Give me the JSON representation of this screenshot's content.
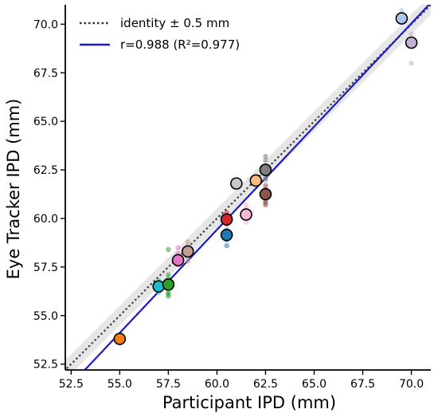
{
  "chart_data": {
    "type": "scatter",
    "title": "",
    "xlabel": "Participant IPD (mm)",
    "ylabel": "Eye Tracker IPD (mm)",
    "xlim": [
      52.2,
      71.0
    ],
    "ylim": [
      52.2,
      71.0
    ],
    "xticks": [
      "52.5",
      "55.0",
      "57.5",
      "60.0",
      "62.5",
      "65.0",
      "67.5",
      "70.0"
    ],
    "yticks": [
      "52.5",
      "55.0",
      "57.5",
      "60.0",
      "62.5",
      "65.0",
      "67.5",
      "70.0"
    ],
    "grid": false,
    "legend_position": "top-left",
    "legend": {
      "identity_label": "identity ± 0.5 mm",
      "fit_label": "r=0.988 (R²=0.977)"
    },
    "identity_band_halfwidth": 0.5,
    "fit_line": {
      "slope": 1.062,
      "intercept": -4.3,
      "color": "#1a1acc"
    },
    "participants": [
      {
        "x": 55.0,
        "y": 53.8,
        "color": "#ff7f0e",
        "samples": [
          53.6,
          53.9,
          54.0,
          53.7
        ]
      },
      {
        "x": 57.0,
        "y": 56.5,
        "color": "#17becf",
        "samples": [
          56.2,
          56.4,
          56.7,
          56.8,
          56.3
        ]
      },
      {
        "x": 57.5,
        "y": 56.6,
        "color": "#2ca02c",
        "samples": [
          56.0,
          56.2,
          56.5,
          56.9,
          57.1,
          58.4,
          56.1
        ]
      },
      {
        "x": 58.0,
        "y": 57.85,
        "color": "#e377c2",
        "samples": [
          58.5,
          57.7,
          58.2,
          57.6
        ]
      },
      {
        "x": 58.5,
        "y": 58.3,
        "color": "#c49c94",
        "samples": [
          57.8,
          58.6,
          58.8,
          58.0,
          58.1
        ]
      },
      {
        "x": 60.5,
        "y": 59.95,
        "color": "#d62728",
        "samples": [
          59.7,
          60.1,
          60.3,
          59.8
        ]
      },
      {
        "x": 60.5,
        "y": 59.15,
        "color": "#1f77b4",
        "samples": [
          58.6,
          59.0,
          59.4,
          58.9
        ]
      },
      {
        "x": 61.0,
        "y": 61.8,
        "color": "#c7c7c7",
        "samples": [
          61.6,
          61.9,
          62.0
        ]
      },
      {
        "x": 61.5,
        "y": 60.2,
        "color": "#f7b6d2",
        "samples": [
          59.8,
          60.5,
          60.7,
          60.0
        ]
      },
      {
        "x": 62.0,
        "y": 61.95,
        "color": "#ffbb78",
        "samples": [
          61.8,
          62.1,
          62.2
        ]
      },
      {
        "x": 62.5,
        "y": 62.5,
        "color": "#7f7f7f",
        "samples": [
          62.0,
          62.3,
          62.7,
          63.0,
          63.2,
          62.1
        ]
      },
      {
        "x": 62.5,
        "y": 61.25,
        "color": "#8c564b",
        "samples": [
          60.7,
          60.9,
          61.1,
          61.5,
          61.7,
          60.8
        ]
      },
      {
        "x": 69.5,
        "y": 70.3,
        "color": "#aec7e8",
        "samples": [
          70.7,
          70.1,
          70.4
        ]
      },
      {
        "x": 70.0,
        "y": 69.05,
        "color": "#c5b0d5",
        "samples": [
          68.0,
          69.3,
          69.5
        ]
      }
    ]
  }
}
